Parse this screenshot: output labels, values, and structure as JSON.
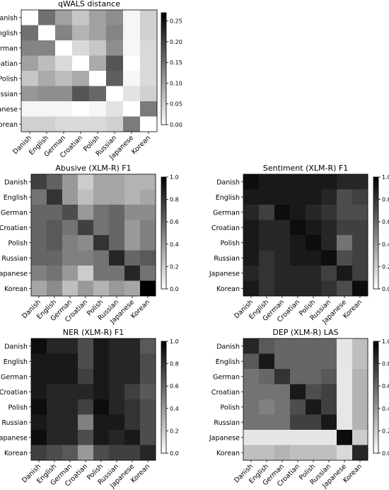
{
  "chart_data": [
    {
      "type": "heatmap",
      "title": "qWALS distance",
      "rows": [
        "Danish",
        "English",
        "German",
        "Croatian",
        "Polish",
        "Russian",
        "Japanese",
        "Korean"
      ],
      "cols": [
        "Danish",
        "English",
        "German",
        "Croatian",
        "Polish",
        "Russian",
        "Japanese",
        "Korean"
      ],
      "colormap": "gray_r",
      "colorbar": {
        "min": 0.0,
        "max": 0.27,
        "ticks": [
          "0.00",
          "0.05",
          "0.10",
          "0.15",
          "0.20",
          "0.25"
        ],
        "tick_values": [
          0.0,
          0.05,
          0.1,
          0.15,
          0.2,
          0.25
        ]
      },
      "values": [
        [
          0.0,
          0.15,
          0.1,
          0.06,
          0.1,
          0.12,
          0.01,
          0.05
        ],
        [
          0.15,
          0.0,
          0.13,
          0.08,
          0.1,
          0.13,
          0.01,
          0.05
        ],
        [
          0.13,
          0.13,
          0.0,
          0.04,
          0.06,
          0.12,
          0.01,
          0.04
        ],
        [
          0.1,
          0.07,
          0.04,
          0.0,
          0.09,
          0.18,
          0.0,
          0.04
        ],
        [
          0.06,
          0.09,
          0.07,
          0.09,
          0.0,
          0.17,
          0.01,
          0.04
        ],
        [
          0.11,
          0.12,
          0.12,
          0.18,
          0.16,
          0.0,
          0.03,
          0.05
        ],
        [
          0.01,
          0.01,
          0.01,
          0.0,
          0.01,
          0.03,
          0.0,
          0.14
        ],
        [
          0.05,
          0.05,
          0.04,
          0.04,
          0.04,
          0.05,
          0.14,
          0.0
        ]
      ]
    },
    {
      "type": "heatmap",
      "title": "Abusive (XLM-R) F1",
      "rows": [
        "Danish",
        "English",
        "German",
        "Croatian",
        "Polish",
        "Russian",
        "Japanese",
        "Korean"
      ],
      "cols": [
        "Danish",
        "English",
        "German",
        "Croatian",
        "Polish",
        "Russian",
        "Japanese",
        "Korean"
      ],
      "colormap": "gray_r",
      "colorbar": {
        "min": 0.0,
        "max": 1.0,
        "ticks": [
          "0.0",
          "0.2",
          "0.4",
          "0.6",
          "0.8",
          "1.0"
        ],
        "tick_values": [
          0.0,
          0.2,
          0.4,
          0.6,
          0.8,
          1.0
        ]
      },
      "values": [
        [
          0.75,
          0.62,
          0.4,
          0.2,
          0.35,
          0.35,
          0.3,
          0.3
        ],
        [
          0.55,
          0.8,
          0.4,
          0.25,
          0.35,
          0.35,
          0.3,
          0.35
        ],
        [
          0.6,
          0.6,
          0.7,
          0.4,
          0.55,
          0.6,
          0.45,
          0.45
        ],
        [
          0.6,
          0.65,
          0.55,
          0.75,
          0.55,
          0.6,
          0.4,
          0.5
        ],
        [
          0.6,
          0.65,
          0.5,
          0.45,
          0.8,
          0.6,
          0.4,
          0.5
        ],
        [
          0.6,
          0.6,
          0.5,
          0.5,
          0.55,
          0.85,
          0.6,
          0.65
        ],
        [
          0.5,
          0.55,
          0.4,
          0.2,
          0.55,
          0.55,
          0.85,
          0.55
        ],
        [
          0.35,
          0.45,
          0.25,
          0.4,
          0.3,
          0.4,
          0.35,
          1.0
        ]
      ]
    },
    {
      "type": "heatmap",
      "title": "Sentiment (XLM-R) F1",
      "rows": [
        "Danish",
        "English",
        "German",
        "Croatian",
        "Polish",
        "Russian",
        "Japanese",
        "Korean"
      ],
      "cols": [
        "Danish",
        "English",
        "German",
        "Croatian",
        "Polish",
        "Russian",
        "Japanese",
        "Korean"
      ],
      "colormap": "gray_r",
      "colorbar": {
        "min": 0.0,
        "max": 1.0,
        "ticks": [
          "0.0",
          "0.2",
          "0.4",
          "0.6",
          "0.8",
          "1.0"
        ],
        "tick_values": [
          0.0,
          0.2,
          0.4,
          0.6,
          0.8,
          1.0
        ]
      },
      "values": [
        [
          0.95,
          0.9,
          0.9,
          0.9,
          0.9,
          0.9,
          0.85,
          0.85
        ],
        [
          0.9,
          0.9,
          0.9,
          0.9,
          0.9,
          0.85,
          0.7,
          0.75
        ],
        [
          0.85,
          0.75,
          0.95,
          0.9,
          0.85,
          0.8,
          0.7,
          0.7
        ],
        [
          0.9,
          0.85,
          0.85,
          0.95,
          0.9,
          0.85,
          0.75,
          0.75
        ],
        [
          0.9,
          0.85,
          0.85,
          0.9,
          0.95,
          0.85,
          0.55,
          0.75
        ],
        [
          0.9,
          0.8,
          0.85,
          0.9,
          0.9,
          0.95,
          0.7,
          0.75
        ],
        [
          0.85,
          0.8,
          0.85,
          0.85,
          0.85,
          0.75,
          0.9,
          0.75
        ],
        [
          0.9,
          0.8,
          0.85,
          0.85,
          0.85,
          0.8,
          0.7,
          0.95
        ]
      ]
    },
    {
      "type": "heatmap",
      "title": "NER (XLM-R) F1",
      "rows": [
        "Danish",
        "English",
        "German",
        "Croatian",
        "Polish",
        "Russian",
        "Japanese",
        "Korean"
      ],
      "cols": [
        "Danish",
        "English",
        "German",
        "Croatian",
        "Polish",
        "Russian",
        "Japanese",
        "Korean"
      ],
      "colormap": "gray_r",
      "colorbar": {
        "min": 0.0,
        "max": 1.0,
        "ticks": [
          "0.0",
          "0.2",
          "0.4",
          "0.6",
          "0.8",
          "1.0"
        ],
        "tick_values": [
          0.0,
          0.2,
          0.4,
          0.6,
          0.8,
          1.0
        ]
      },
      "values": [
        [
          0.95,
          0.85,
          0.85,
          0.7,
          0.9,
          0.85,
          0.85,
          0.65
        ],
        [
          0.9,
          0.9,
          0.9,
          0.7,
          0.9,
          0.85,
          0.85,
          0.7
        ],
        [
          0.9,
          0.9,
          0.9,
          0.75,
          0.9,
          0.85,
          0.85,
          0.7
        ],
        [
          0.9,
          0.85,
          0.85,
          0.85,
          0.9,
          0.85,
          0.75,
          0.65
        ],
        [
          0.95,
          0.85,
          0.85,
          0.75,
          0.95,
          0.85,
          0.8,
          0.7
        ],
        [
          0.9,
          0.85,
          0.85,
          0.5,
          0.9,
          0.9,
          0.8,
          0.7
        ],
        [
          0.95,
          0.85,
          0.85,
          0.7,
          0.9,
          0.85,
          0.9,
          0.7
        ],
        [
          0.75,
          0.7,
          0.65,
          0.4,
          0.7,
          0.75,
          0.75,
          0.85
        ]
      ]
    },
    {
      "type": "heatmap",
      "title": "DEP (XLM-R) LAS",
      "rows": [
        "Danish",
        "English",
        "German",
        "Croatian",
        "Polish",
        "Russian",
        "Japanese",
        "Korean"
      ],
      "cols": [
        "Danish",
        "English",
        "German",
        "Croatian",
        "Polish",
        "Russian",
        "Japanese",
        "Korean"
      ],
      "colormap": "gray_r",
      "colorbar": {
        "min": 0.0,
        "max": 1.0,
        "ticks": [
          "0.0",
          "0.2",
          "0.4",
          "0.6",
          "0.8",
          "1.0"
        ],
        "tick_values": [
          0.0,
          0.2,
          0.4,
          0.6,
          0.8,
          1.0
        ]
      },
      "values": [
        [
          0.85,
          0.65,
          0.6,
          0.6,
          0.6,
          0.6,
          0.1,
          0.25
        ],
        [
          0.65,
          0.9,
          0.6,
          0.6,
          0.6,
          0.6,
          0.1,
          0.25
        ],
        [
          0.55,
          0.6,
          0.8,
          0.6,
          0.6,
          0.65,
          0.1,
          0.3
        ],
        [
          0.55,
          0.55,
          0.55,
          0.9,
          0.7,
          0.75,
          0.1,
          0.3
        ],
        [
          0.55,
          0.5,
          0.55,
          0.7,
          0.9,
          0.75,
          0.1,
          0.3
        ],
        [
          0.55,
          0.55,
          0.55,
          0.75,
          0.75,
          0.9,
          0.1,
          0.3
        ],
        [
          0.1,
          0.1,
          0.1,
          0.1,
          0.1,
          0.1,
          0.95,
          0.2
        ],
        [
          0.25,
          0.25,
          0.3,
          0.25,
          0.25,
          0.25,
          0.15,
          0.85
        ]
      ]
    }
  ]
}
